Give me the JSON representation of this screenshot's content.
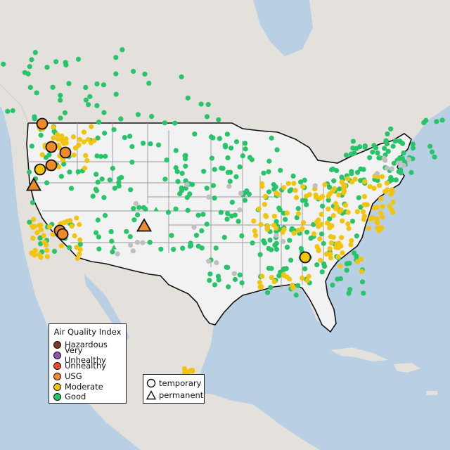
{
  "legend": {
    "title": "Air Quality Index",
    "categories": [
      {
        "label": "Hazardous",
        "color": "#7e3b26"
      },
      {
        "label": "Very Unhealthy",
        "color": "#9153b5"
      },
      {
        "label": "Unhealthy",
        "color": "#ec4b2e"
      },
      {
        "label": "USG",
        "color": "#ee8a2c"
      },
      {
        "label": "Moderate",
        "color": "#f1c40f"
      },
      {
        "label": "Good",
        "color": "#27c46a"
      }
    ]
  },
  "shape_legend": {
    "temporary": "temporary",
    "permanent": "permanent"
  },
  "colors": {
    "ocean": "#b9cfe3",
    "land": "#e6e3de",
    "us_land": "#efefef",
    "no_data": "#bfbfbf"
  }
}
